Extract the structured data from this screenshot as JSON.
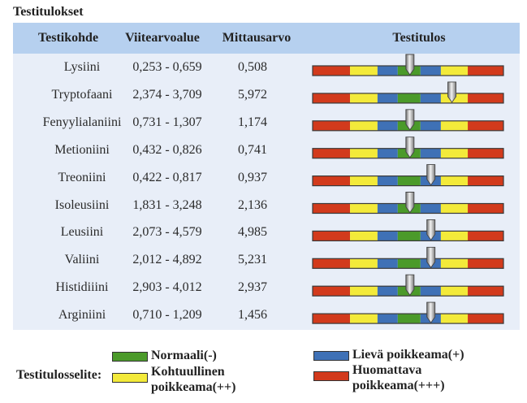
{
  "title": "Testitulokset",
  "chart_data": {
    "type": "table",
    "title": "Testitulokset",
    "columns": [
      "Testikohde",
      "Viitearvoalue",
      "Mittausarvo",
      "Testitulos"
    ],
    "scale_segments": [
      {
        "category": "huomattava",
        "color": "#d23a1c"
      },
      {
        "category": "kohtuullinen",
        "color": "#f3ea3a"
      },
      {
        "category": "lieva",
        "color": "#3f71b6"
      },
      {
        "category": "normaali",
        "color": "#4b9a2a"
      },
      {
        "category": "lieva",
        "color": "#3f71b6"
      },
      {
        "category": "kohtuullinen",
        "color": "#f3ea3a"
      },
      {
        "category": "huomattava",
        "color": "#d23a1c"
      }
    ],
    "rows": [
      {
        "name": "Lysiini",
        "range": "0,253 - 0,659",
        "value": "0,508",
        "result_position": 0.51,
        "result_category": "Normaali(-)"
      },
      {
        "name": "Tryptofaani",
        "range": "2,374 - 3,709",
        "value": "5,972",
        "result_position": 0.73,
        "result_category": "Kohtuullinen poikkeama(++)"
      },
      {
        "name": "Fenyylialaniini",
        "range": "0,731 - 1,307",
        "value": "1,174",
        "result_position": 0.51,
        "result_category": "Normaali(-)"
      },
      {
        "name": "Metioniini",
        "range": "0,432 - 0,826",
        "value": "0,741",
        "result_position": 0.51,
        "result_category": "Normaali(-)"
      },
      {
        "name": "Treoniini",
        "range": "0,422 - 0,817",
        "value": "0,937",
        "result_position": 0.62,
        "result_category": "Lievä poikkeama(+)"
      },
      {
        "name": "Isoleusiini",
        "range": "1,831 - 3,248",
        "value": "2,136",
        "result_position": 0.51,
        "result_category": "Normaali(-)"
      },
      {
        "name": "Leusiini",
        "range": "2,073 - 4,579",
        "value": "4,985",
        "result_position": 0.62,
        "result_category": "Lievä poikkeama(+)"
      },
      {
        "name": "Valiini",
        "range": "2,012 - 4,892",
        "value": "5,231",
        "result_position": 0.62,
        "result_category": "Lievä poikkeama(+)"
      },
      {
        "name": "Histidiiini",
        "range": "2,903 - 4,012",
        "value": "2,937",
        "result_position": 0.51,
        "result_category": "Normaali(-)"
      },
      {
        "name": "Arginiini",
        "range": "0,710 - 1,209",
        "value": "1,456",
        "result_position": 0.62,
        "result_category": "Lievä poikkeama(+)"
      }
    ],
    "legend": {
      "title": "Testitulosselite:",
      "items": [
        {
          "label": "Normaali(-)",
          "color": "#4b9a2a"
        },
        {
          "label_lines": [
            "Kohtuullinen",
            "poikkeama(++)"
          ],
          "color": "#f3ea3a"
        },
        {
          "label": "Lievä poikkeama(+)",
          "color": "#3f71b6"
        },
        {
          "label_lines": [
            "Huomattava",
            "poikkeama(+++)"
          ],
          "color": "#d23a1c"
        }
      ]
    }
  },
  "header": {
    "col_name": "Testikohde",
    "col_range": "Viitearvoalue",
    "col_value": "Mittausarvo",
    "col_result": "Testitulos"
  },
  "legend": {
    "title": "Testitulosselite:",
    "normal": "Normaali(-)",
    "moderate_1": "Kohtuullinen",
    "moderate_2": "poikkeama(++)",
    "mild": "Lievä poikkeama(+)",
    "major_1": "Huomattava",
    "major_2": "poikkeama(+++)"
  }
}
